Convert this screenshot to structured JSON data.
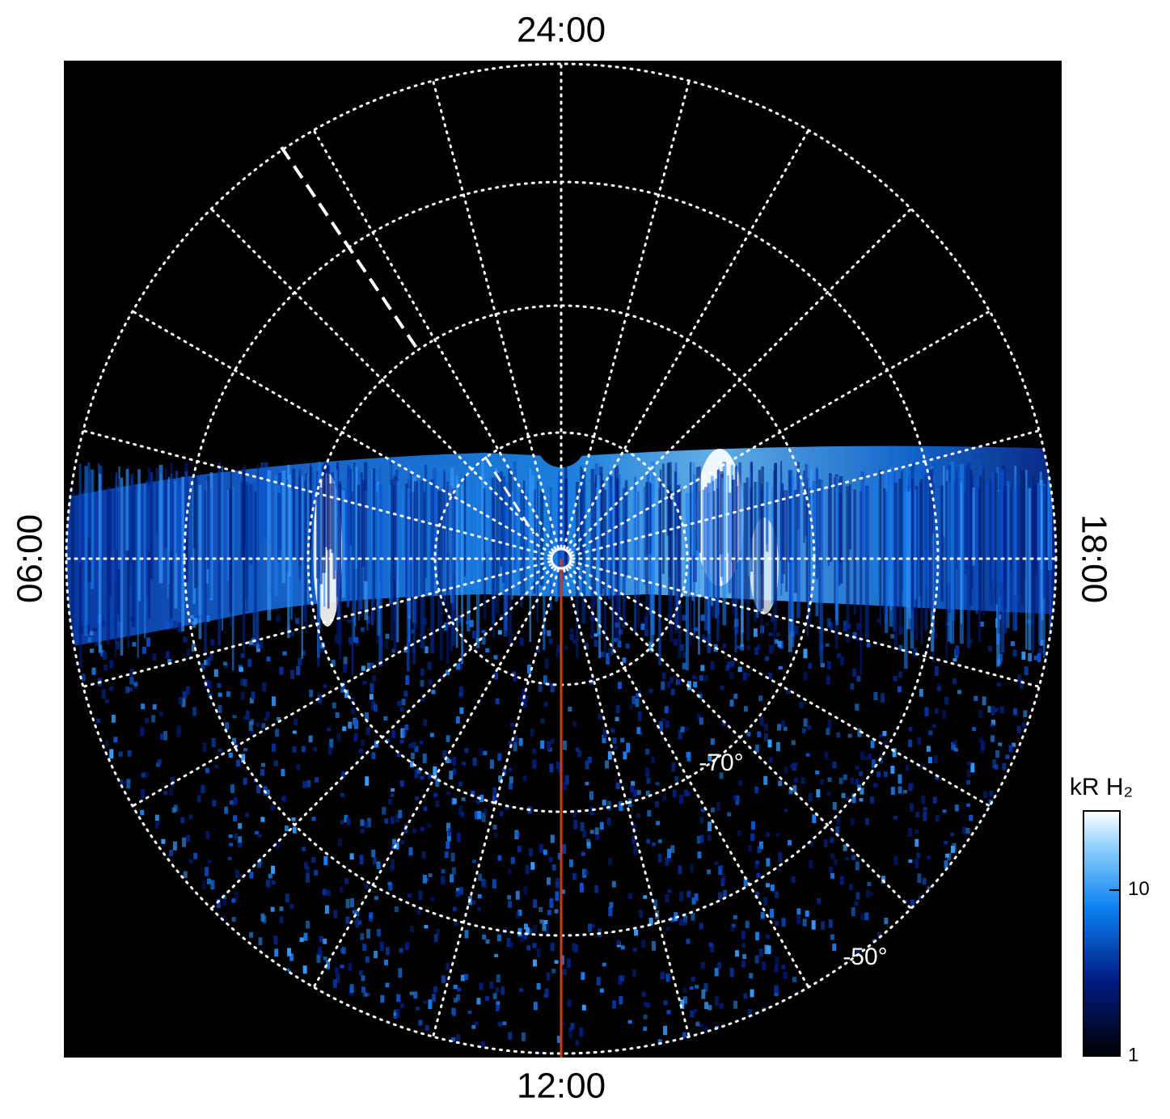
{
  "plot": {
    "local_times": {
      "top": "24:00",
      "bottom": "12:00",
      "left": "06:00",
      "right": "18:00"
    },
    "latitude_labels": [
      "-70°",
      "-50°"
    ],
    "colorbar": {
      "title": "kR H₂",
      "scale": "log",
      "lim": [
        1,
        30
      ],
      "ticks": [
        1,
        10
      ]
    }
  }
}
